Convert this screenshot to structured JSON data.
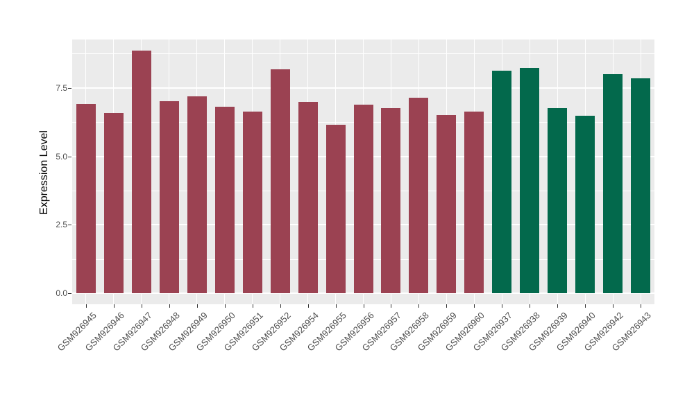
{
  "chart_data": {
    "type": "bar",
    "title": "",
    "xlabel": "",
    "ylabel": "Expression Level",
    "categories": [
      "GSM926945",
      "GSM926946",
      "GSM926947",
      "GSM926948",
      "GSM926949",
      "GSM926950",
      "GSM926951",
      "GSM926952",
      "GSM926954",
      "GSM926955",
      "GSM926956",
      "GSM926957",
      "GSM926958",
      "GSM926959",
      "GSM926960",
      "GSM926937",
      "GSM926938",
      "GSM926939",
      "GSM926940",
      "GSM926942",
      "GSM926943"
    ],
    "values": [
      6.92,
      6.58,
      8.85,
      7.0,
      7.19,
      6.82,
      6.63,
      8.17,
      6.98,
      6.16,
      6.88,
      6.75,
      7.14,
      6.5,
      6.62,
      8.11,
      8.22,
      6.76,
      6.47,
      8.0,
      7.85
    ],
    "colors": [
      "#9B4252",
      "#9B4252",
      "#9B4252",
      "#9B4252",
      "#9B4252",
      "#9B4252",
      "#9B4252",
      "#9B4252",
      "#9B4252",
      "#9B4252",
      "#9B4252",
      "#9B4252",
      "#9B4252",
      "#9B4252",
      "#9B4252",
      "#03694C",
      "#03694C",
      "#03694C",
      "#03694C",
      "#03694C",
      "#03694C"
    ],
    "color_groups": {
      "maroon": "#9B4252",
      "green": "#03694C"
    },
    "ytick_labels": [
      "0.0",
      "2.5",
      "5.0",
      "7.5"
    ],
    "ytick_values": [
      0,
      2.5,
      5,
      7.5
    ],
    "minor_gridline_values": [
      1.25,
      3.75,
      6.25,
      8.75
    ],
    "ylim": [
      0,
      9.26
    ],
    "grid": true,
    "legend_position": "none",
    "x_tick_angle_deg": 45,
    "panel_background": "#EBEBEB",
    "gridline_color": "#FFFFFF"
  }
}
